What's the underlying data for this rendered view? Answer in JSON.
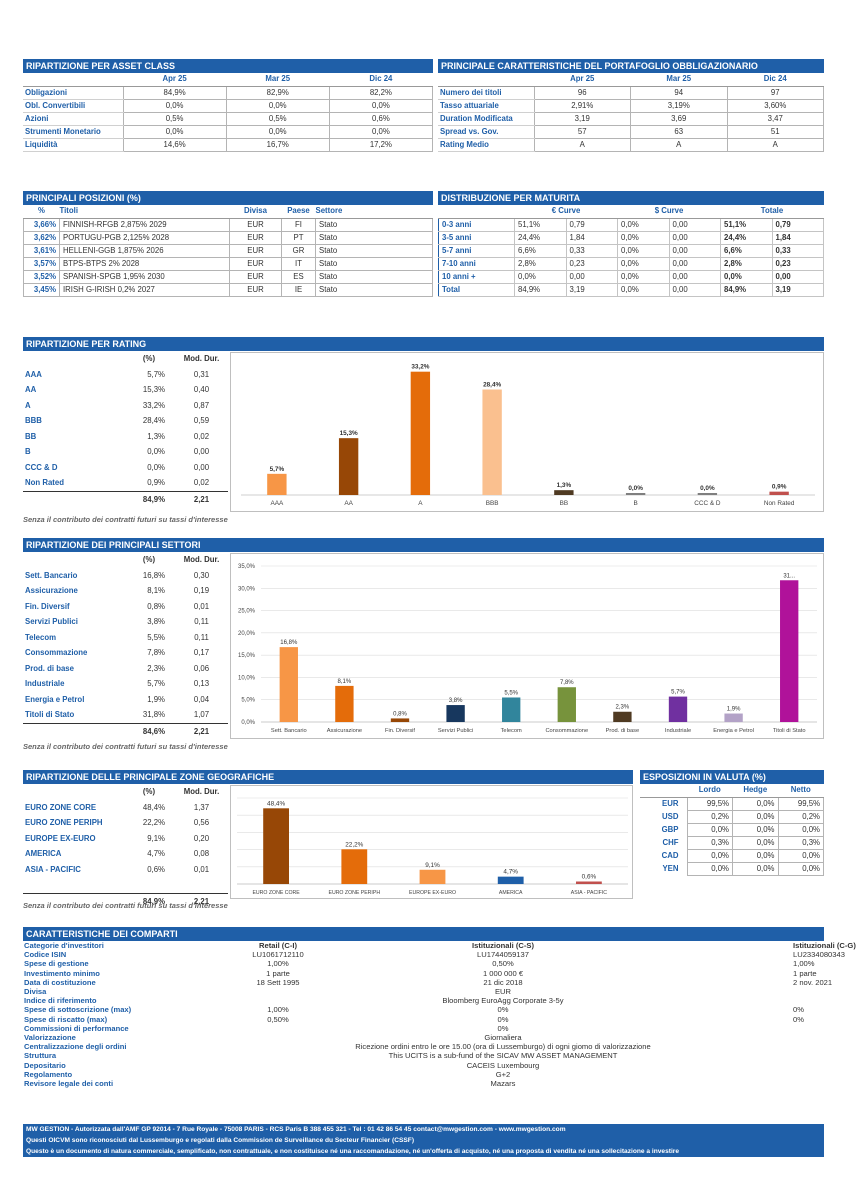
{
  "asset_class": {
    "title": "RIPARTIZIONE PER ASSET CLASS",
    "cols": [
      "Apr 25",
      "Mar 25",
      "Dic 24"
    ],
    "rows": [
      {
        "label": "Obligazioni",
        "v": [
          "84,9%",
          "82,9%",
          "82,2%"
        ]
      },
      {
        "label": "Obl. Convertibili",
        "v": [
          "0,0%",
          "0,0%",
          "0,0%"
        ]
      },
      {
        "label": "Azioni",
        "v": [
          "0,5%",
          "0,5%",
          "0,6%"
        ]
      },
      {
        "label": "Strumenti Monetario",
        "v": [
          "0,0%",
          "0,0%",
          "0,0%"
        ]
      },
      {
        "label": "Liquidità",
        "v": [
          "14,6%",
          "16,7%",
          "17,2%"
        ]
      }
    ]
  },
  "bond_chars": {
    "title": "PRINCIPALE CARATTERISTICHE DEL PORTAFOGLIO OBBLIGAZIONARIO",
    "cols": [
      "Apr 25",
      "Mar 25",
      "Dic 24"
    ],
    "rows": [
      {
        "label": "Numero dei titoli",
        "v": [
          "96",
          "94",
          "97"
        ]
      },
      {
        "label": "Tasso attuariale",
        "v": [
          "2,91%",
          "3,19%",
          "3,60%"
        ]
      },
      {
        "label": "Duration Modificata",
        "v": [
          "3,19",
          "3,69",
          "3,47"
        ]
      },
      {
        "label": "Spread vs. Gov.",
        "v": [
          "57",
          "63",
          "51"
        ]
      },
      {
        "label": "Rating Medio",
        "v": [
          "A",
          "A",
          "A"
        ]
      }
    ]
  },
  "positions": {
    "title": "PRINCIPALI POSIZIONI (%)",
    "cols": [
      "%",
      "Titoli",
      "Divisa",
      "Paese",
      "Settore"
    ],
    "rows": [
      {
        "p": "3,66%",
        "t": "FINNISH-RFGB 2,875% 2029",
        "d": "EUR",
        "c": "FI",
        "s": "Stato"
      },
      {
        "p": "3,62%",
        "t": "PORTUGU-PGB 2,125% 2028",
        "d": "EUR",
        "c": "PT",
        "s": "Stato"
      },
      {
        "p": "3,61%",
        "t": "HELLENI-GGB 1,875% 2026",
        "d": "EUR",
        "c": "GR",
        "s": "Stato"
      },
      {
        "p": "3,57%",
        "t": "BTPS-BTPS 2% 2028",
        "d": "EUR",
        "c": "IT",
        "s": "Stato"
      },
      {
        "p": "3,52%",
        "t": "SPANISH-SPGB 1,95% 2030",
        "d": "EUR",
        "c": "ES",
        "s": "Stato"
      },
      {
        "p": "3,45%",
        "t": "IRISH G-IRISH 0,2% 2027",
        "d": "EUR",
        "c": "IE",
        "s": "Stato"
      }
    ]
  },
  "maturity": {
    "title": "DISTRIBUZIONE PER MATURITA",
    "groups": [
      "€ Curve",
      "$ Curve",
      "Totale"
    ],
    "rows": [
      {
        "label": "0-3 anni",
        "v": [
          "51,1%",
          "0,79",
          "0,0%",
          "0,00",
          "51,1%",
          "0,79"
        ]
      },
      {
        "label": "3-5 anni",
        "v": [
          "24,4%",
          "1,84",
          "0,0%",
          "0,00",
          "24,4%",
          "1,84"
        ]
      },
      {
        "label": "5-7 anni",
        "v": [
          "6,6%",
          "0,33",
          "0,0%",
          "0,00",
          "6,6%",
          "0,33"
        ]
      },
      {
        "label": "7-10 anni",
        "v": [
          "2,8%",
          "0,23",
          "0,0%",
          "0,00",
          "2,8%",
          "0,23"
        ]
      },
      {
        "label": "10 anni +",
        "v": [
          "0,0%",
          "0,00",
          "0,0%",
          "0,00",
          "0,0%",
          "0,00"
        ]
      },
      {
        "label": "Total",
        "v": [
          "84,9%",
          "3,19",
          "0,0%",
          "0,00",
          "84,9%",
          "3,19"
        ]
      }
    ]
  },
  "rating": {
    "title": "RIPARTIZIONE PER RATING",
    "h_pct": "(%)",
    "h_dur": "Mod. Dur.",
    "rows": [
      {
        "label": "AAA",
        "p": "5,7%",
        "d": "0,31"
      },
      {
        "label": "AA",
        "p": "15,3%",
        "d": "0,40"
      },
      {
        "label": "A",
        "p": "33,2%",
        "d": "0,87"
      },
      {
        "label": "BBB",
        "p": "28,4%",
        "d": "0,59"
      },
      {
        "label": "BB",
        "p": "1,3%",
        "d": "0,02"
      },
      {
        "label": "B",
        "p": "0,0%",
        "d": "0,00"
      },
      {
        "label": "CCC & D",
        "p": "0,0%",
        "d": "0,00"
      },
      {
        "label": "Non Rated",
        "p": "0,9%",
        "d": "0,02"
      }
    ],
    "total_p": "84,9%",
    "total_d": "2,21",
    "note": "Senza il contributo dei contratti futuri su tassi d'interesse"
  },
  "sectors": {
    "title": "RIPARTIZIONE DEI PRINCIPALI SETTORI",
    "h_pct": "(%)",
    "h_dur": "Mod. Dur.",
    "rows": [
      {
        "label": "Sett. Bancario",
        "p": "16,8%",
        "d": "0,30"
      },
      {
        "label": "Assicurazione",
        "p": "8,1%",
        "d": "0,19"
      },
      {
        "label": "Fin. Diversif",
        "p": "0,8%",
        "d": "0,01"
      },
      {
        "label": "Servizi Publici",
        "p": "3,8%",
        "d": "0,11"
      },
      {
        "label": "Telecom",
        "p": "5,5%",
        "d": "0,11"
      },
      {
        "label": "Consommazione",
        "p": "7,8%",
        "d": "0,17"
      },
      {
        "label": "Prod. di base",
        "p": "2,3%",
        "d": "0,06"
      },
      {
        "label": "Industriale",
        "p": "5,7%",
        "d": "0,13"
      },
      {
        "label": "Energia e Petrol",
        "p": "1,9%",
        "d": "0,04"
      },
      {
        "label": "Titoli di Stato",
        "p": "31,8%",
        "d": "1,07"
      }
    ],
    "total_p": "84,6%",
    "total_d": "2,21",
    "note": "Senza il contributo dei contratti futuri su tassi d'interesse"
  },
  "zones": {
    "title": "RIPARTIZIONE DELLE PRINCIPALE ZONE GEOGRAFICHE",
    "h_pct": "(%)",
    "h_dur": "Mod. Dur.",
    "rows": [
      {
        "label": "EURO ZONE CORE",
        "p": "48,4%",
        "d": "1,37"
      },
      {
        "label": "EURO ZONE PERIPH",
        "p": "22,2%",
        "d": "0,56"
      },
      {
        "label": "EUROPE EX-EURO",
        "p": "9,1%",
        "d": "0,20"
      },
      {
        "label": "AMERICA",
        "p": "4,7%",
        "d": "0,08"
      },
      {
        "label": "ASIA - PACIFIC",
        "p": "0,6%",
        "d": "0,01"
      }
    ],
    "total_p": "84,9%",
    "total_d": "2,21",
    "note": "Senza il contributo dei contratti futuri su tassi d'interesse"
  },
  "currency": {
    "title": "ESPOSIZIONI IN VALUTA (%)",
    "cols": [
      "Lordo",
      "Hedge",
      "Netto"
    ],
    "rows": [
      {
        "label": "EUR",
        "v": [
          "99,5%",
          "0,0%",
          "99,5%"
        ]
      },
      {
        "label": "USD",
        "v": [
          "0,2%",
          "0,0%",
          "0,2%"
        ]
      },
      {
        "label": "GBP",
        "v": [
          "0,0%",
          "0,0%",
          "0,0%"
        ]
      },
      {
        "label": "CHF",
        "v": [
          "0,3%",
          "0,0%",
          "0,3%"
        ]
      },
      {
        "label": "CAD",
        "v": [
          "0,0%",
          "0,0%",
          "0,0%"
        ]
      },
      {
        "label": "YEN",
        "v": [
          "0,0%",
          "0,0%",
          "0,0%"
        ]
      }
    ]
  },
  "compartments": {
    "title": "CARATTERISTICHE DEI COMPARTI",
    "rows": [
      {
        "k": "Categorie d'investitori",
        "a": "Retail (C-I)",
        "b": "Istituzionali (C-S)",
        "c": "Istituzionali (C-G)",
        "bold": true
      },
      {
        "k": "Codice ISIN",
        "a": "LU1061712110",
        "b": "LU1744059137",
        "c": "LU2334080343"
      },
      {
        "k": "Spese di gestione",
        "a": "1,00%",
        "b": "0,50%",
        "c": "1,00%"
      },
      {
        "k": "Investimento minimo",
        "a": "1 parte",
        "b": "1 000 000 €",
        "c": "1 parte"
      },
      {
        "k": "Data di costituzione",
        "a": "18 Sett 1995",
        "b": "21 dic 2018",
        "c": "2 nov. 2021"
      },
      {
        "k": "Divisa",
        "a": "",
        "b": "EUR",
        "c": ""
      },
      {
        "k": "Indice di riferimento",
        "a": "",
        "b": "Bloomberg EuroAgg Corporate 3-5y",
        "c": ""
      },
      {
        "k": "Spese di sottoscrizione (max)",
        "a": "1,00%",
        "b": "0%",
        "c": "0%"
      },
      {
        "k": "Spese di riscatto (max)",
        "a": "0,50%",
        "b": "0%",
        "c": "0%"
      },
      {
        "k": "Commissioni di performance",
        "a": "",
        "b": "0%",
        "c": ""
      },
      {
        "k": "Valorizzazione",
        "a": "",
        "b": "Giornaliera",
        "c": ""
      },
      {
        "k": "Centralizzazione degli ordini",
        "a": "",
        "b": "Ricezione ordini entro le ore 15.00 (ora di Lussemburgo) di ogni giomo di valorizzazione",
        "c": ""
      },
      {
        "k": "Struttura",
        "a": "",
        "b": "This UCITS is a sub-fund of the SICAV MW ASSET MANAGEMENT",
        "c": ""
      },
      {
        "k": "Depositario",
        "a": "",
        "b": "CACEIS Luxembourg",
        "c": ""
      },
      {
        "k": "Regolamento",
        "a": "",
        "b": "G+2",
        "c": ""
      },
      {
        "k": "Revisore legale dei conti",
        "a": "",
        "b": "Mazars",
        "c": ""
      }
    ]
  },
  "footer": {
    "line1": "MW GESTION - Autorizzata dall'AMF GP 92014 - 7 Rue Royale - 75008 PARIS - RCS Paris B 388 455 321 - Tel : 01 42 86 54 45 contact@mwgestion.com - www.mwgestion.com",
    "line2": "Questi OICVM sono riconosciuti dal Lussemburgo e regolati dalla Commission de Surveillance du Secteur Financier (CSSF)",
    "line3": "Questo è un documento di natura commerciale, semplificato, non contrattuale, e non costituisce né una raccomandazione, né un'offerta di acquisto, né una proposta di vendita né una sollecitazione a investire"
  },
  "chart_data": [
    {
      "type": "bar",
      "categories": [
        "AAA",
        "AA",
        "A",
        "BBB",
        "BB",
        "B",
        "CCC & D",
        "Non Rated"
      ],
      "values": [
        5.7,
        15.3,
        33.2,
        28.4,
        1.3,
        0.0,
        0.0,
        0.9
      ],
      "labels": [
        "5,7%",
        "15,3%",
        "33,2%",
        "28,4%",
        "1,3%",
        "0,0%",
        "0,0%",
        "0,9%"
      ],
      "colors": [
        "#f79646",
        "#974706",
        "#e46c0a",
        "#fac08f",
        "#4f3a22",
        "#7f7f7f",
        "#7f7f7f",
        "#c0504d"
      ],
      "ylim": [
        0,
        35
      ]
    },
    {
      "type": "bar",
      "categories": [
        "Sett. Bancario",
        "Assicurazione",
        "Fin. Diversif",
        "Servizi Publici",
        "Telecom",
        "Consommazione",
        "Prod. di base",
        "Industriale",
        "Energia e Petrol",
        "Titoli di Stato"
      ],
      "values": [
        16.8,
        8.1,
        0.8,
        3.8,
        5.5,
        7.8,
        2.3,
        5.7,
        1.9,
        31.8
      ],
      "labels": [
        "16,8%",
        "8,1%",
        "0,8%",
        "3,8%",
        "5,5%",
        "7,8%",
        "2,3%",
        "5,7%",
        "1,9%",
        "31..."
      ],
      "colors": [
        "#f79646",
        "#e46c0a",
        "#974706",
        "#17375e",
        "#31859c",
        "#77933c",
        "#4f3a22",
        "#7030a0",
        "#b3a2c7",
        "#b0129a"
      ],
      "yticks": [
        "0,0%",
        "5,0%",
        "10,0%",
        "15,0%",
        "20,0%",
        "25,0%",
        "30,0%",
        "35,0%"
      ],
      "ylim": [
        0,
        35
      ]
    },
    {
      "type": "bar",
      "categories": [
        "EURO ZONE CORE",
        "EURO ZONE PERIPH",
        "EUROPE EX-EURO",
        "AMERICA",
        "ASIA - PACIFIC"
      ],
      "values": [
        48.4,
        22.2,
        9.1,
        4.7,
        0.6
      ],
      "labels": [
        "48,4%",
        "22,2%",
        "9,1%",
        "4,7%",
        "0,6%"
      ],
      "colors": [
        "#974706",
        "#e46c0a",
        "#f79646",
        "#1f5fa8",
        "#c0504d"
      ],
      "ylim": [
        0,
        55
      ]
    }
  ]
}
